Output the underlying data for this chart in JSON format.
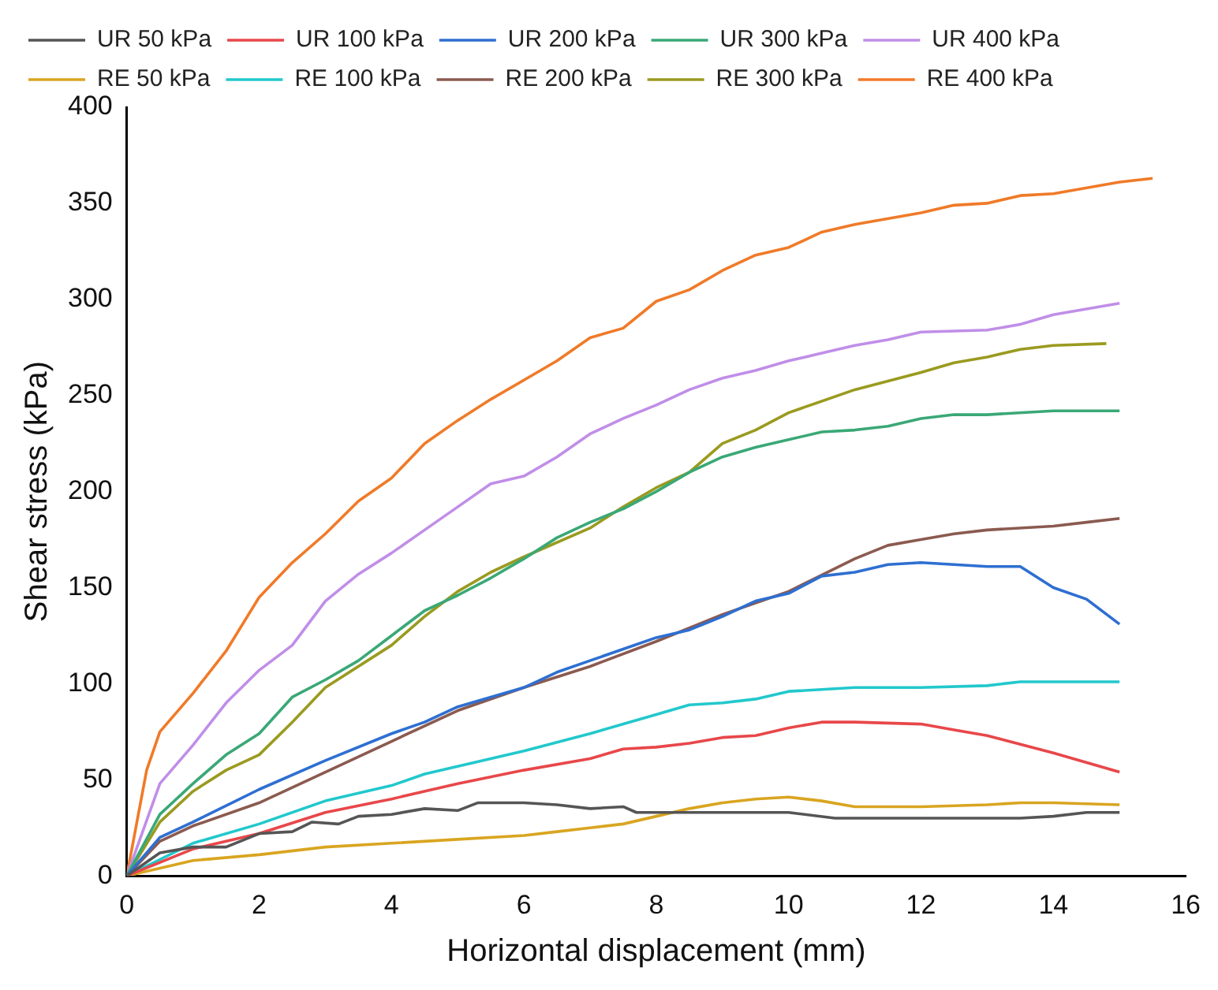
{
  "chart_data": {
    "type": "line",
    "xlabel": "Horizontal displacement (mm)",
    "ylabel": "Shear stress (kPa)",
    "xlim": [
      0,
      16
    ],
    "xticks": [
      0,
      2,
      4,
      6,
      8,
      10,
      12,
      14,
      16
    ],
    "ylim": [
      0,
      400
    ],
    "yticks": [
      0,
      50,
      100,
      150,
      200,
      250,
      300,
      350,
      400
    ],
    "grid": false,
    "legend": "top",
    "marker": "none",
    "line_style": "solid",
    "series": [
      {
        "name": "UR 50 kPa",
        "color": "#555555",
        "x": [
          0,
          0.5,
          1,
          1.5,
          2,
          2.5,
          2.8,
          3.2,
          3.5,
          4,
          4.5,
          5,
          5.3,
          6,
          6.5,
          7,
          7.5,
          7.7,
          8,
          9,
          10,
          10.7,
          12,
          13.5,
          14,
          14.5,
          15
        ],
        "values": [
          0,
          12,
          15,
          15,
          22,
          23,
          28,
          27,
          31,
          32,
          35,
          34,
          38,
          38,
          37,
          35,
          36,
          33,
          33,
          33,
          33,
          30,
          30,
          30,
          31,
          33,
          33
        ]
      },
      {
        "name": "UR 100 kPa",
        "color": "#e8474a",
        "x": [
          0,
          1,
          2,
          3,
          4,
          5,
          6,
          7,
          7.5,
          8,
          8.5,
          9,
          9.5,
          10,
          10.5,
          11,
          12,
          12.5,
          13,
          14,
          15
        ],
        "values": [
          0,
          14,
          22,
          33,
          40,
          48,
          55,
          61,
          66,
          67,
          69,
          72,
          73,
          77,
          80,
          80,
          79,
          76,
          73,
          64,
          54
        ]
      },
      {
        "name": "UR 200 kPa",
        "color": "#2e6fd1",
        "x": [
          0,
          0.5,
          1,
          2,
          3,
          4,
          4.5,
          5,
          6,
          6.5,
          7,
          7.5,
          8,
          8.5,
          9,
          9.5,
          10,
          10.5,
          11,
          11.5,
          12,
          12.5,
          13,
          13.5,
          14,
          14.5,
          15
        ],
        "values": [
          0,
          20,
          28,
          45,
          60,
          74,
          80,
          88,
          98,
          106,
          112,
          118,
          124,
          128,
          135,
          143,
          147,
          156,
          158,
          162,
          163,
          162,
          161,
          161,
          150,
          144,
          131
        ]
      },
      {
        "name": "UR 300 kPa",
        "color": "#3aa876",
        "x": [
          0,
          0.5,
          1,
          1.5,
          2,
          2.5,
          3,
          3.5,
          4,
          4.5,
          5,
          5.5,
          6,
          6.5,
          7,
          7.5,
          8,
          8.5,
          9,
          9.5,
          10,
          10.5,
          11,
          11.5,
          12,
          12.5,
          13,
          14,
          15
        ],
        "values": [
          0,
          32,
          48,
          63,
          74,
          93,
          102,
          112,
          125,
          138,
          146,
          155,
          165,
          176,
          184,
          191,
          200,
          210,
          218,
          223,
          227,
          231,
          232,
          234,
          238,
          240,
          240,
          242,
          242
        ]
      },
      {
        "name": "UR 400 kPa",
        "color": "#c08ee8",
        "x": [
          0,
          0.5,
          1,
          1.5,
          2,
          2.5,
          3,
          3.5,
          4,
          4.5,
          5,
          5.5,
          6,
          6.5,
          7,
          7.5,
          8,
          8.5,
          9,
          9.5,
          10,
          10.5,
          11,
          11.5,
          12,
          13,
          13.5,
          14,
          15
        ],
        "values": [
          0,
          48,
          68,
          90,
          107,
          120,
          143,
          157,
          168,
          180,
          192,
          204,
          208,
          218,
          230,
          238,
          245,
          253,
          259,
          263,
          268,
          272,
          276,
          279,
          283,
          284,
          287,
          292,
          298
        ]
      },
      {
        "name": "RE 50 kPa",
        "color": "#d9a520",
        "x": [
          0,
          1,
          2,
          3,
          4,
          5,
          6,
          6.5,
          7,
          7.5,
          8,
          8.5,
          9,
          9.5,
          10,
          10.5,
          11,
          12,
          13,
          13.5,
          14,
          15
        ],
        "values": [
          0,
          8,
          11,
          15,
          17,
          19,
          21,
          23,
          25,
          27,
          31,
          35,
          38,
          40,
          41,
          39,
          36,
          36,
          37,
          38,
          38,
          37
        ]
      },
      {
        "name": "RE 100 kPa",
        "color": "#22c8cc",
        "x": [
          0,
          1,
          2,
          3,
          4,
          4.5,
          5,
          6,
          7,
          8,
          8.5,
          9,
          9.5,
          10,
          11,
          12,
          13,
          13.5,
          15
        ],
        "values": [
          0,
          17,
          27,
          39,
          47,
          53,
          57,
          65,
          74,
          84,
          89,
          90,
          92,
          96,
          98,
          98,
          99,
          101,
          101
        ]
      },
      {
        "name": "RE 200 kPa",
        "color": "#8b5a50",
        "x": [
          0,
          0.5,
          1,
          2,
          3,
          4,
          5,
          6,
          7,
          8,
          9,
          10,
          11,
          11.5,
          12,
          12.5,
          13,
          14,
          14.5,
          15
        ],
        "values": [
          0,
          18,
          26,
          38,
          54,
          70,
          86,
          98,
          109,
          122,
          136,
          148,
          165,
          172,
          175,
          178,
          180,
          182,
          184,
          186
        ]
      },
      {
        "name": "RE 300 kPa",
        "color": "#9a9a20",
        "x": [
          0,
          0.5,
          1,
          1.5,
          2,
          2.5,
          3,
          4,
          4.5,
          5,
          5.5,
          6,
          7,
          7.5,
          8,
          8.5,
          9,
          9.5,
          10,
          11,
          12,
          12.5,
          13,
          13.5,
          14,
          14.8
        ],
        "values": [
          0,
          28,
          44,
          55,
          63,
          80,
          98,
          120,
          135,
          148,
          158,
          166,
          181,
          192,
          202,
          210,
          225,
          232,
          241,
          253,
          262,
          267,
          270,
          274,
          276,
          277
        ]
      },
      {
        "name": "RE 400 kPa",
        "color": "#f07a28",
        "x": [
          0,
          0.3,
          0.5,
          1,
          1.5,
          2,
          2.5,
          3,
          3.5,
          4,
          4.5,
          5,
          5.5,
          6,
          6.5,
          7,
          7.5,
          8,
          8.5,
          9,
          9.5,
          10,
          10.5,
          11,
          12,
          12.5,
          13,
          13.5,
          14,
          15,
          15.5
        ],
        "values": [
          0,
          55,
          75,
          95,
          117,
          145,
          163,
          178,
          195,
          207,
          225,
          237,
          248,
          258,
          268,
          280,
          285,
          299,
          305,
          315,
          323,
          327,
          335,
          339,
          345,
          349,
          350,
          354,
          355,
          361,
          363
        ]
      }
    ]
  }
}
